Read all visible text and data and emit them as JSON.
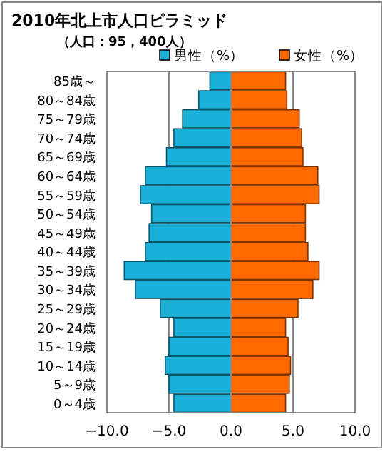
{
  "chart_data": {
    "type": "bar",
    "orientation": "horizontal",
    "stacked": true,
    "title": "2010年北上市人口ピラミッド",
    "subtitle": "（人口：95，400人）",
    "categories": [
      "85歳～",
      "80～84歳",
      "75～79歳",
      "70～74歳",
      "65～69歳",
      "60～64歳",
      "55～59歳",
      "50～54歳",
      "45～49歳",
      "40～44歳",
      "35～39歳",
      "30～34歳",
      "25～29歳",
      "20～24歳",
      "15～19歳",
      "10～14歳",
      "5～9歳",
      "0～4歳"
    ],
    "series": [
      {
        "name": "男性（%）",
        "color": "#1ab0d8",
        "values": [
          -1.7,
          -2.6,
          -3.9,
          -4.6,
          -5.2,
          -6.9,
          -7.3,
          -6.4,
          -6.6,
          -6.9,
          -8.6,
          -7.7,
          -5.7,
          -4.6,
          -5.0,
          -5.3,
          -5.0,
          -4.6
        ]
      },
      {
        "name": "女性（%）",
        "color": "#ff6a00",
        "values": [
          4.4,
          4.5,
          5.5,
          5.7,
          5.8,
          7.0,
          7.1,
          6.0,
          6.0,
          6.2,
          7.1,
          6.6,
          5.4,
          4.4,
          4.6,
          4.8,
          4.7,
          4.4
        ]
      }
    ],
    "xlim": [
      -10,
      10
    ],
    "xticks": [
      {
        "value": -10,
        "label": "−10.0"
      },
      {
        "value": -5,
        "label": "−5.0"
      },
      {
        "value": 0,
        "label": "0.0"
      },
      {
        "value": 5,
        "label": "5.0"
      },
      {
        "value": 10,
        "label": "10.0"
      }
    ],
    "grid": "x",
    "legend": "top right"
  }
}
